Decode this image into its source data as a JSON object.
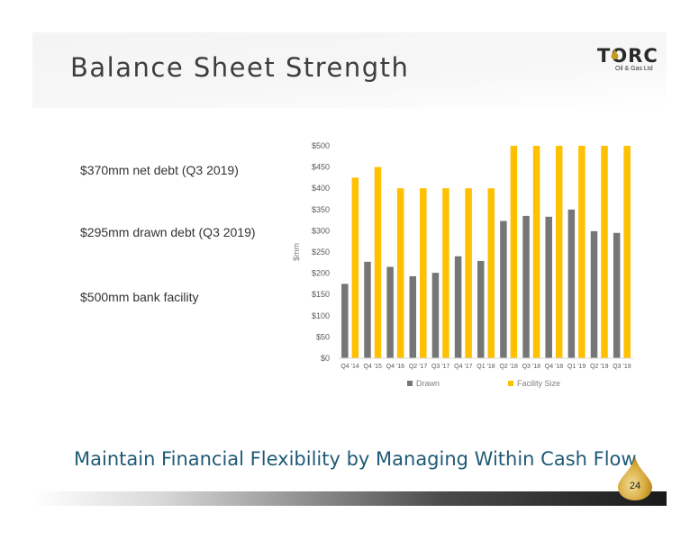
{
  "slide": {
    "title": "Balance Sheet Strength",
    "logo": {
      "name": "TORC",
      "subtitle": "Oil & Gas Ltd"
    },
    "bullets": [
      "$370mm net debt (Q3 2019)",
      "$295mm drawn debt (Q3 2019)",
      "$500mm bank facility"
    ],
    "tagline": "Maintain Financial Flexibility by Managing Within Cash Flow",
    "page_number": "24"
  },
  "colors": {
    "drawn": "#767676",
    "facility": "#ffc000",
    "tagline": "#1e5a76",
    "drop": "#c99a1e"
  },
  "chart_data": {
    "type": "bar",
    "categories": [
      "Q4 '14",
      "Q4 '15",
      "Q4 '16",
      "Q2 '17",
      "Q3 '17",
      "Q4 '17",
      "Q1 '18",
      "Q2 '18",
      "Q3 '18",
      "Q4 '18",
      "Q1 '19",
      "Q2 '19",
      "Q3 '19"
    ],
    "series": [
      {
        "name": "Drawn",
        "values": [
          175,
          227,
          215,
          193,
          201,
          240,
          229,
          323,
          335,
          333,
          350,
          299,
          295
        ]
      },
      {
        "name": "Facility Size",
        "values": [
          425,
          450,
          400,
          400,
          400,
          400,
          400,
          500,
          500,
          500,
          500,
          500,
          500
        ]
      }
    ],
    "ylabel": "$mm",
    "ylim": [
      0,
      500
    ],
    "yticks": [
      0,
      50,
      100,
      150,
      200,
      250,
      300,
      350,
      400,
      450,
      500
    ],
    "ytick_labels": [
      "$0",
      "$50",
      "$100",
      "$150",
      "$200",
      "$250",
      "$300",
      "$350",
      "$400",
      "$450",
      "$500"
    ],
    "grid": false,
    "legend": "bottom"
  }
}
